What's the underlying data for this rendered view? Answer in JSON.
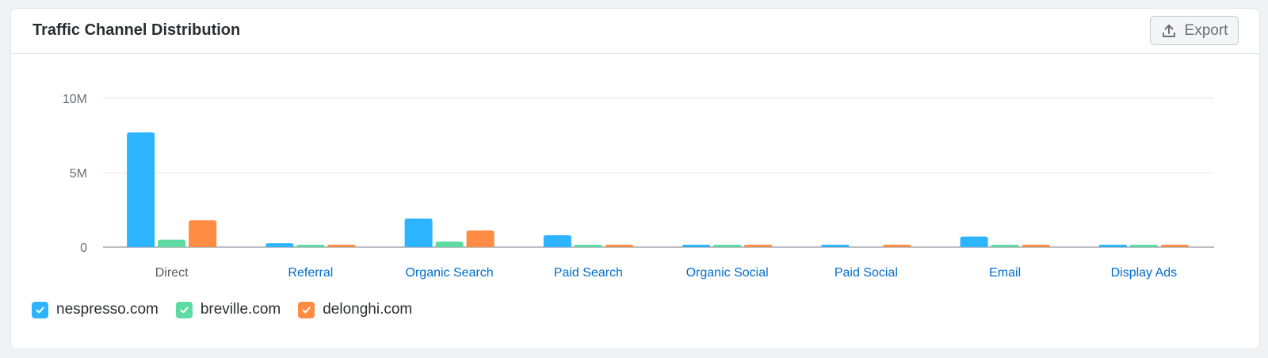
{
  "header": {
    "title": "Traffic Channel Distribution",
    "export_label": "Export",
    "export_icon": "upload-icon"
  },
  "colors": {
    "nespresso": "#2db4ff",
    "breville": "#5edaa3",
    "delonghi": "#ff8c42",
    "link": "#006dca",
    "axis_text": "#6c6e79",
    "grid": "#e3e6ea"
  },
  "chart_data": {
    "type": "bar",
    "title": "Traffic Channel Distribution",
    "categories": [
      "Direct",
      "Referral",
      "Organic Search",
      "Paid Search",
      "Organic Social",
      "Paid Social",
      "Email",
      "Display Ads"
    ],
    "series": [
      {
        "name": "nespresso.com",
        "color": "#2db4ff",
        "values": [
          7700000,
          260000,
          1920000,
          800000,
          70000,
          60000,
          710000,
          80000
        ]
      },
      {
        "name": "breville.com",
        "color": "#5edaa3",
        "values": [
          500000,
          80000,
          370000,
          60000,
          50000,
          0,
          60000,
          60000
        ]
      },
      {
        "name": "delonghi.com",
        "color": "#ff8c42",
        "values": [
          1800000,
          80000,
          1120000,
          80000,
          70000,
          80000,
          70000,
          60000
        ]
      }
    ],
    "yticks": [
      {
        "value": 0,
        "label": "0"
      },
      {
        "value": 5000000,
        "label": "5M"
      },
      {
        "value": 10000000,
        "label": "10M"
      }
    ],
    "ylim": [
      0,
      10000000
    ],
    "grid": true,
    "legend_position": "bottom-left",
    "xlabel": "",
    "ylabel": ""
  }
}
